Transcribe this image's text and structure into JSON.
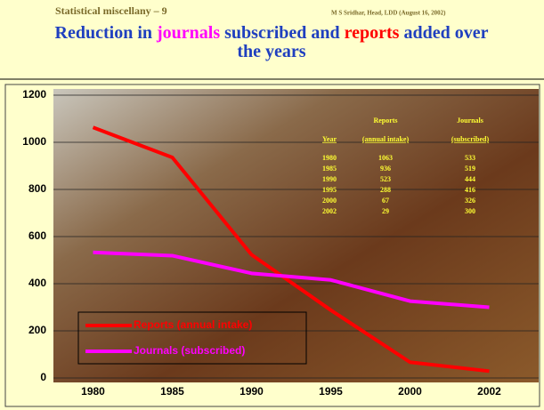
{
  "slide": {
    "heading": "Statistical miscellany – 9",
    "credit": "M S Sridhar, Head, LDD (August 16, 2002)",
    "title_lines": [
      [
        {
          "text": "Reduction in ",
          "color": "#1f3fbf"
        },
        {
          "text": "journals",
          "color": "#ff00ff"
        },
        {
          "text": " subscribed and ",
          "color": "#1f3fbf"
        },
        {
          "text": "reports",
          "color": "#ff0000"
        },
        {
          "text": " added over",
          "color": "#1f3fbf"
        }
      ],
      [
        {
          "text": "the years",
          "color": "#1f3fbf"
        }
      ]
    ]
  },
  "chart_data": {
    "type": "line",
    "categories": [
      "1980",
      "1985",
      "1990",
      "1995",
      "2000",
      "2002"
    ],
    "series": [
      {
        "name": "Reports (annual intake)",
        "color": "#ff0000",
        "values": [
          1063,
          936,
          523,
          288,
          67,
          29
        ]
      },
      {
        "name": "Journals (subscribed)",
        "color": "#ff00ff",
        "values": [
          533,
          519,
          444,
          416,
          326,
          300
        ]
      }
    ],
    "ylim": [
      0,
      1200
    ],
    "yticks": [
      0,
      200,
      400,
      600,
      800,
      1000,
      1200
    ],
    "grid": true,
    "legend": "bottom-left"
  },
  "table": {
    "columns": [
      "Reports",
      "Journals"
    ],
    "subcolumns": [
      "Year",
      "(annual intake)",
      "(subscribed)"
    ],
    "rows": [
      [
        "1980",
        "1063",
        "533"
      ],
      [
        "1985",
        "936",
        "519"
      ],
      [
        "1990",
        "523",
        "444"
      ],
      [
        "1995",
        "288",
        "416"
      ],
      [
        "2000",
        "67",
        "326"
      ],
      [
        "2002",
        "29",
        "300"
      ]
    ]
  }
}
